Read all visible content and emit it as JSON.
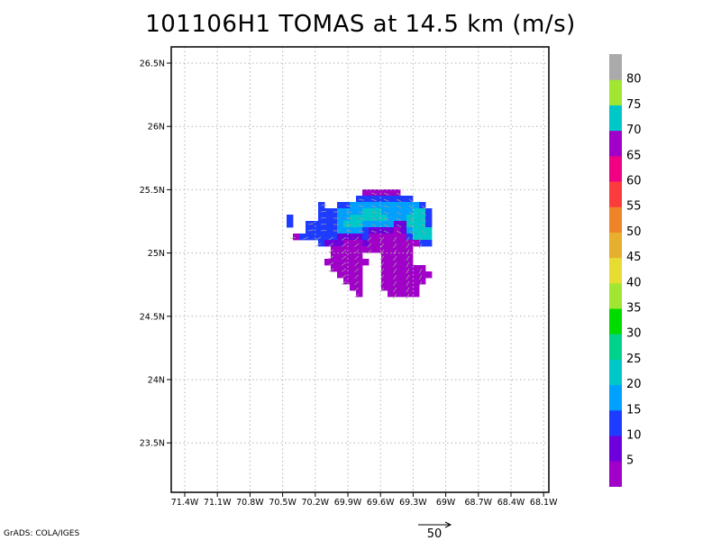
{
  "title": "101106H1 TOMAS at 14.5 km (m/s)",
  "credit": "GrADS: COLA/IGES",
  "reference_vector": {
    "label": "50",
    "value": 50
  },
  "chart_data": {
    "type": "heatmap",
    "title": "101106H1 TOMAS at 14.5 km (m/s)",
    "x_ticks": [
      "71.4W",
      "71.1W",
      "70.8W",
      "70.5W",
      "70.2W",
      "69.9W",
      "69.6W",
      "69.3W",
      "69W",
      "68.7W",
      "68.4W",
      "68.1W"
    ],
    "y_ticks": [
      "26.5N",
      "26N",
      "25.5N",
      "25N",
      "24.5N",
      "24N",
      "23.5N"
    ],
    "xlim": [
      -71.5,
      -68.1
    ],
    "ylim": [
      23.1,
      26.6
    ],
    "grid": true,
    "colorbar": {
      "labels": [
        "5",
        "10",
        "15",
        "20",
        "25",
        "30",
        "35",
        "40",
        "45",
        "50",
        "55",
        "60",
        "65",
        "70",
        "75",
        "80"
      ],
      "colors": [
        "#a000c8",
        "#6e00dc",
        "#1e3cff",
        "#00a0ff",
        "#00c8c8",
        "#00d28c",
        "#00dc00",
        "#a0e632",
        "#e6dc32",
        "#e6af2d",
        "#f08228",
        "#fa3c3c",
        "#f00082",
        "#a000c8",
        "#00c8c8",
        "#a0e632",
        "#aaaaaa"
      ]
    },
    "wind_regions": [
      {
        "speed": "5-10",
        "color": "#a000c8",
        "area": "southern and southwestern parts of the echo, around 24.6N-25.0N"
      },
      {
        "speed": "10-15",
        "color": "#6e00dc",
        "area": "central band near 25N"
      },
      {
        "speed": "15-20",
        "color": "#1e3cff",
        "area": "northern and western edges around 25.0N-25.5N"
      },
      {
        "speed": "20-25",
        "color": "#00a0ff",
        "area": "inner arc near 25.1N-25.3N"
      },
      {
        "speed": "25-30",
        "color": "#00c8c8",
        "area": "northeastern maximum near 25.1N-25.3N, 69.3W"
      }
    ]
  }
}
